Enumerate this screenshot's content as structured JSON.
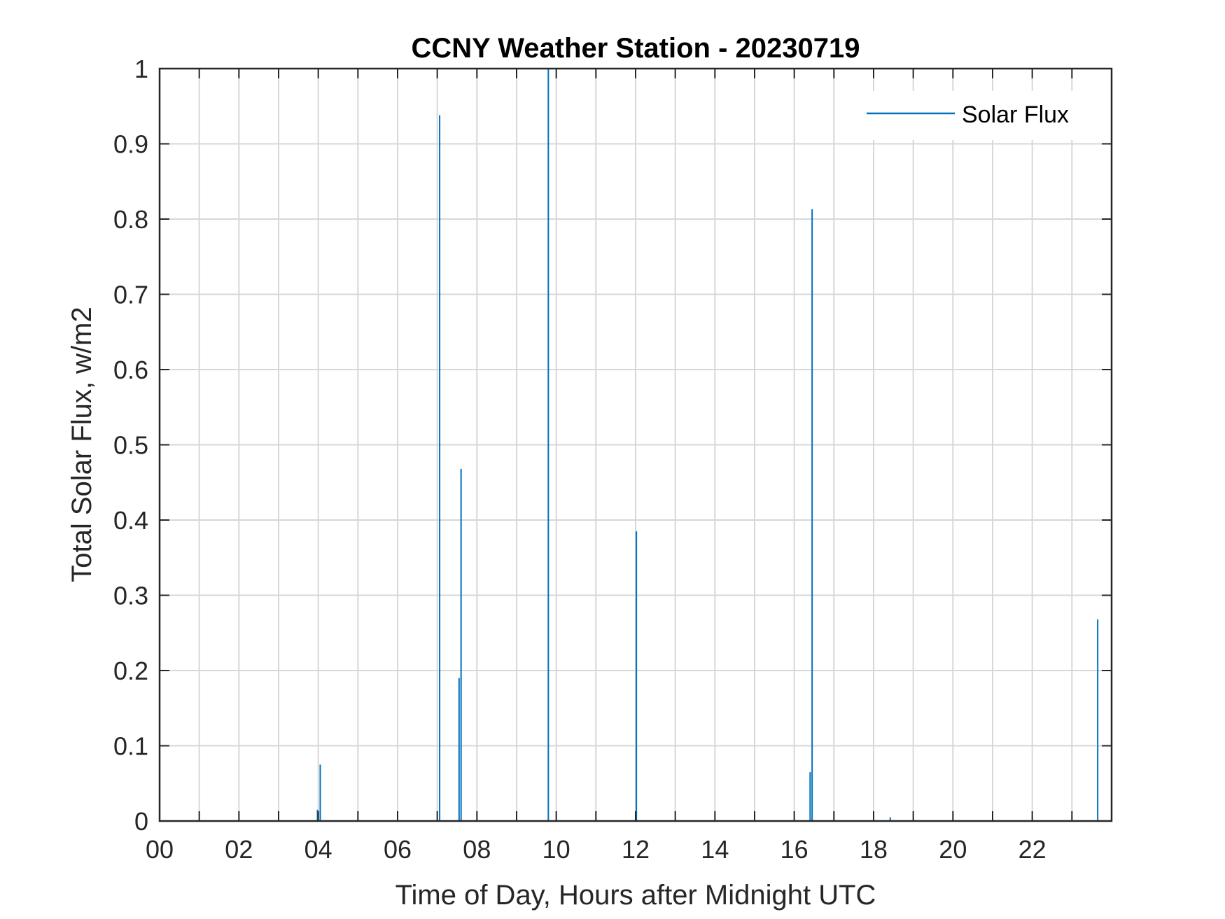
{
  "chart_data": {
    "type": "line",
    "title": "CCNY Weather Station - 20230719",
    "xlabel": "Time of Day, Hours after Midnight UTC",
    "ylabel": "Total Solar Flux, w/m2",
    "xlim": [
      0,
      24
    ],
    "ylim": [
      0,
      1
    ],
    "x_ticks": [
      "00",
      "02",
      "04",
      "06",
      "08",
      "10",
      "12",
      "14",
      "16",
      "18",
      "20",
      "22"
    ],
    "y_ticks": [
      "0",
      "0.1",
      "0.2",
      "0.3",
      "0.4",
      "0.5",
      "0.6",
      "0.7",
      "0.8",
      "0.9",
      "1"
    ],
    "grid": true,
    "legend_position": "top-right",
    "series": [
      {
        "name": "Solar Flux",
        "color": "#0072BD",
        "spikes": [
          {
            "x": 3.98,
            "y": 0.015
          },
          {
            "x": 4.05,
            "y": 0.075
          },
          {
            "x": 7.06,
            "y": 0.938
          },
          {
            "x": 7.55,
            "y": 0.19
          },
          {
            "x": 7.6,
            "y": 0.468
          },
          {
            "x": 9.8,
            "y": 1.0
          },
          {
            "x": 12.02,
            "y": 0.385
          },
          {
            "x": 16.4,
            "y": 0.065
          },
          {
            "x": 16.45,
            "y": 0.813
          },
          {
            "x": 18.42,
            "y": 0.005
          },
          {
            "x": 23.65,
            "y": 0.268
          }
        ]
      }
    ]
  }
}
